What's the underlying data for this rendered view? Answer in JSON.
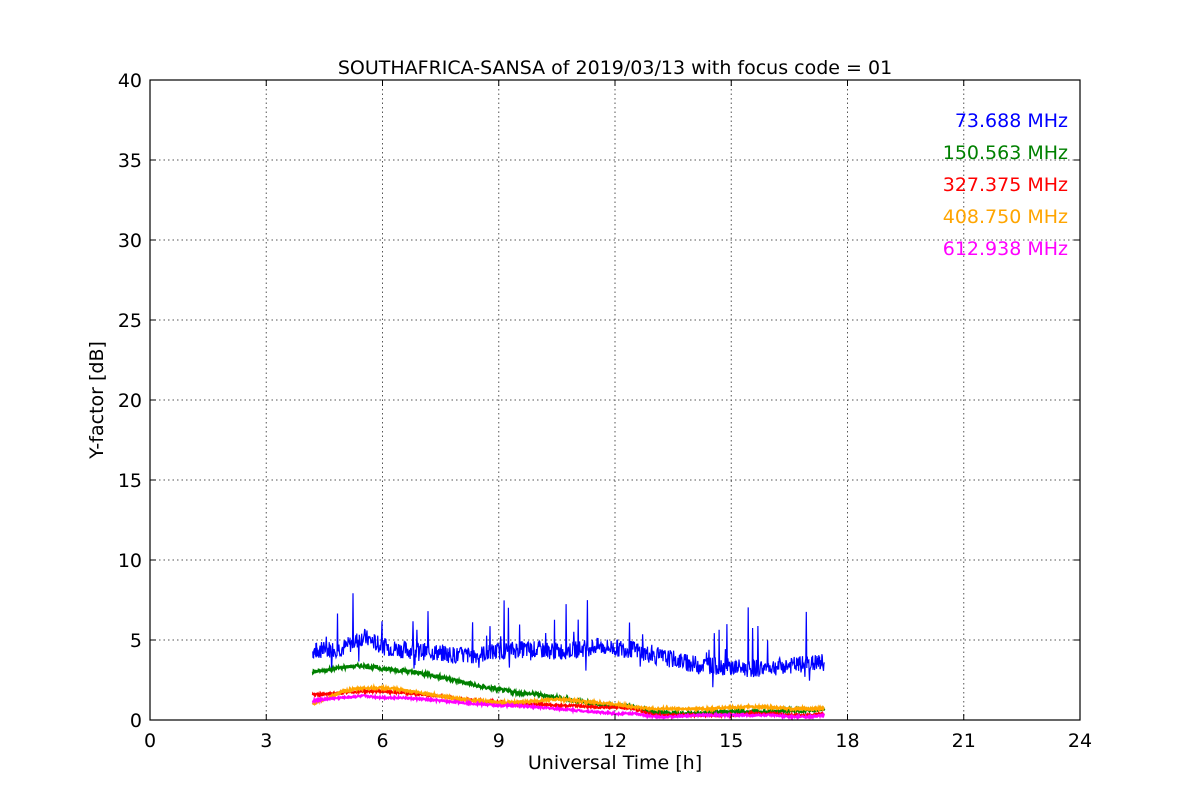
{
  "chart_data": {
    "type": "line",
    "title": "SOUTHAFRICA-SANSA of 2019/03/13 with focus code = 01",
    "xlabel": "Universal Time [h]",
    "ylabel": "Y-factor [dB]",
    "xlim": [
      0,
      24
    ],
    "ylim": [
      0,
      40
    ],
    "xticks": [
      0,
      3,
      6,
      9,
      12,
      15,
      18,
      21,
      24
    ],
    "yticks": [
      0,
      5,
      10,
      15,
      20,
      25,
      30,
      35,
      40
    ],
    "grid": true,
    "legend_position": "top-right",
    "series": [
      {
        "name": "73.688 MHz",
        "color": "#0000ff",
        "x": [
          4.2,
          4.5,
          5.0,
          5.5,
          6.0,
          6.5,
          7.0,
          7.5,
          8.0,
          8.5,
          9.0,
          9.5,
          10.0,
          10.5,
          11.0,
          11.5,
          12.0,
          12.5,
          13.0,
          13.5,
          14.0,
          14.5,
          15.0,
          15.5,
          16.0,
          16.5,
          17.0,
          17.4
        ],
        "y": [
          4.3,
          4.4,
          4.5,
          5.2,
          4.6,
          4.4,
          4.3,
          4.2,
          4.0,
          4.1,
          4.3,
          4.4,
          4.4,
          4.3,
          4.4,
          4.6,
          4.5,
          4.4,
          4.0,
          3.8,
          3.5,
          3.4,
          3.3,
          3.2,
          3.3,
          3.4,
          3.5,
          3.6
        ]
      },
      {
        "name": "150.563 MHz",
        "color": "#008000",
        "x": [
          4.2,
          4.5,
          5.0,
          5.5,
          6.0,
          6.5,
          7.0,
          7.5,
          8.0,
          8.5,
          9.0,
          9.5,
          10.0,
          10.5,
          11.0,
          11.5,
          12.0,
          12.5,
          13.0,
          13.5,
          14.0,
          14.5,
          15.0,
          15.5,
          16.0,
          16.5,
          17.0,
          17.4
        ],
        "y": [
          3.0,
          3.1,
          3.3,
          3.4,
          3.2,
          3.1,
          2.9,
          2.7,
          2.4,
          2.1,
          1.9,
          1.7,
          1.6,
          1.4,
          1.2,
          1.0,
          0.9,
          0.8,
          0.5,
          0.4,
          0.4,
          0.5,
          0.5,
          0.5,
          0.5,
          0.6,
          0.6,
          0.7
        ]
      },
      {
        "name": "327.375 MHz",
        "color": "#ff0000",
        "x": [
          4.2,
          4.5,
          5.0,
          5.5,
          6.0,
          6.5,
          7.0,
          7.5,
          8.0,
          8.5,
          9.0,
          9.5,
          10.0,
          10.5,
          11.0,
          11.5,
          12.0,
          12.5,
          13.0,
          13.5,
          14.0,
          14.5,
          15.0,
          15.5,
          16.0,
          16.5,
          17.0,
          17.4
        ],
        "y": [
          1.6,
          1.6,
          1.7,
          1.8,
          1.8,
          1.7,
          1.6,
          1.5,
          1.3,
          1.2,
          1.1,
          1.0,
          1.0,
          0.9,
          0.9,
          0.8,
          0.8,
          0.7,
          0.3,
          0.3,
          0.3,
          0.3,
          0.3,
          0.4,
          0.4,
          0.3,
          0.3,
          0.4
        ]
      },
      {
        "name": "408.750 MHz",
        "color": "#ffa500",
        "x": [
          4.2,
          4.5,
          5.0,
          5.5,
          6.0,
          6.5,
          7.0,
          7.5,
          8.0,
          8.5,
          9.0,
          9.5,
          10.0,
          10.5,
          11.0,
          11.5,
          12.0,
          12.5,
          13.0,
          13.5,
          14.0,
          14.5,
          15.0,
          15.5,
          16.0,
          16.5,
          17.0,
          17.4
        ],
        "y": [
          1.0,
          1.3,
          1.8,
          2.0,
          2.0,
          1.9,
          1.7,
          1.5,
          1.3,
          1.2,
          1.1,
          1.1,
          1.2,
          1.3,
          1.2,
          1.1,
          1.0,
          0.8,
          0.7,
          0.7,
          0.7,
          0.7,
          0.8,
          0.8,
          0.8,
          0.7,
          0.7,
          0.7
        ]
      },
      {
        "name": "612.938 MHz",
        "color": "#ff00ff",
        "x": [
          4.2,
          4.5,
          5.0,
          5.5,
          6.0,
          6.5,
          7.0,
          7.5,
          8.0,
          8.5,
          9.0,
          9.5,
          10.0,
          10.5,
          11.0,
          11.5,
          12.0,
          12.5,
          13.0,
          13.5,
          14.0,
          14.5,
          15.0,
          15.5,
          16.0,
          16.5,
          17.0,
          17.4
        ],
        "y": [
          1.2,
          1.3,
          1.4,
          1.5,
          1.4,
          1.4,
          1.3,
          1.2,
          1.1,
          1.0,
          0.9,
          0.9,
          0.8,
          0.7,
          0.6,
          0.5,
          0.4,
          0.4,
          0.2,
          0.2,
          0.3,
          0.3,
          0.3,
          0.3,
          0.3,
          0.2,
          0.2,
          0.3
        ]
      }
    ]
  }
}
